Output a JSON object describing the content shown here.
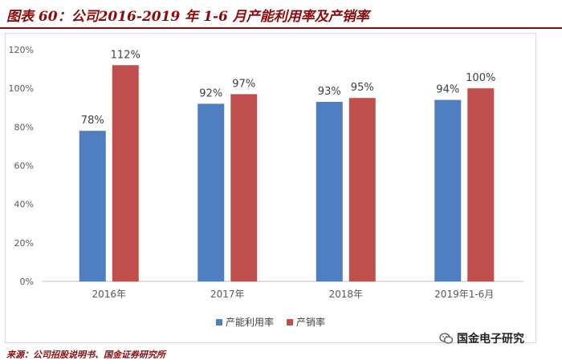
{
  "title": "图表 60：公司2016-2019 年 1-6 月产能利用率及产销率",
  "source": "来源：公司招股说明书、国金证券研究所",
  "watermark": "国金电子研究",
  "colors": {
    "series1": "#4f7fc0",
    "series2": "#c0504d",
    "title": "#8b0a0a",
    "grid": "#d9d9d9"
  },
  "chart_data": {
    "type": "bar",
    "categories": [
      "2016年",
      "2017年",
      "2018年",
      "2019年1-6月"
    ],
    "series": [
      {
        "name": "产能利用率",
        "values": [
          78,
          92,
          93,
          94
        ],
        "labels": [
          "78%",
          "92%",
          "93%",
          "94%"
        ]
      },
      {
        "name": "产销率",
        "values": [
          112,
          97,
          95,
          100
        ],
        "labels": [
          "112%",
          "97%",
          "95%",
          "100%"
        ]
      }
    ],
    "yticks": [
      "0%",
      "20%",
      "40%",
      "60%",
      "80%",
      "100%",
      "120%"
    ],
    "ylim": [
      0,
      120
    ],
    "legend_position": "bottom"
  }
}
